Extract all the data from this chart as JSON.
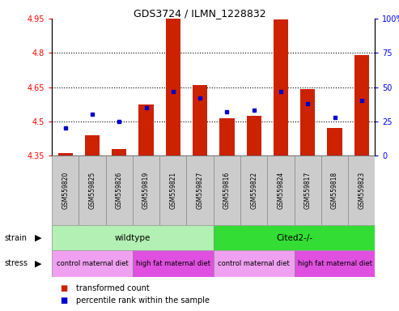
{
  "title": "GDS3724 / ILMN_1228832",
  "samples": [
    "GSM559820",
    "GSM559825",
    "GSM559826",
    "GSM559819",
    "GSM559821",
    "GSM559827",
    "GSM559816",
    "GSM559822",
    "GSM559824",
    "GSM559817",
    "GSM559818",
    "GSM559823"
  ],
  "red_values": [
    4.36,
    4.44,
    4.38,
    4.575,
    4.95,
    4.66,
    4.515,
    4.525,
    4.945,
    4.64,
    4.47,
    4.79
  ],
  "blue_values_pct": [
    20,
    30,
    25,
    35,
    47,
    42,
    32,
    33,
    47,
    38,
    28,
    40
  ],
  "ymin": 4.35,
  "ymax": 4.95,
  "y_ticks": [
    4.35,
    4.5,
    4.65,
    4.8,
    4.95
  ],
  "y_tick_labels": [
    "4.35",
    "4.5",
    "4.65",
    "4.8",
    "4.95"
  ],
  "right_y_ticks": [
    0,
    25,
    50,
    75,
    100
  ],
  "right_y_tick_labels": [
    "0",
    "25",
    "50",
    "75",
    "100%"
  ],
  "dotted_lines": [
    4.5,
    4.65,
    4.8
  ],
  "strain_groups": [
    {
      "label": "wildtype",
      "start": 0,
      "end": 6,
      "color": "#b3f0b3"
    },
    {
      "label": "Cited2-/-",
      "start": 6,
      "end": 12,
      "color": "#33dd33"
    }
  ],
  "stress_groups": [
    {
      "label": "control maternal diet",
      "start": 0,
      "end": 3,
      "color": "#f0a0f0"
    },
    {
      "label": "high fat maternal diet",
      "start": 3,
      "end": 6,
      "color": "#e050e0"
    },
    {
      "label": "control maternal diet",
      "start": 6,
      "end": 9,
      "color": "#f0a0f0"
    },
    {
      "label": "high fat maternal diet",
      "start": 9,
      "end": 12,
      "color": "#e050e0"
    }
  ],
  "bar_color": "#cc2200",
  "marker_color": "#0000cc",
  "bar_bottom": 4.35,
  "legend_items": [
    {
      "color": "#cc2200",
      "label": "transformed count"
    },
    {
      "color": "#0000cc",
      "label": "percentile rank within the sample"
    }
  ],
  "label_row_color": "#cccccc",
  "fig_width": 4.93,
  "fig_height": 3.84,
  "dpi": 100
}
